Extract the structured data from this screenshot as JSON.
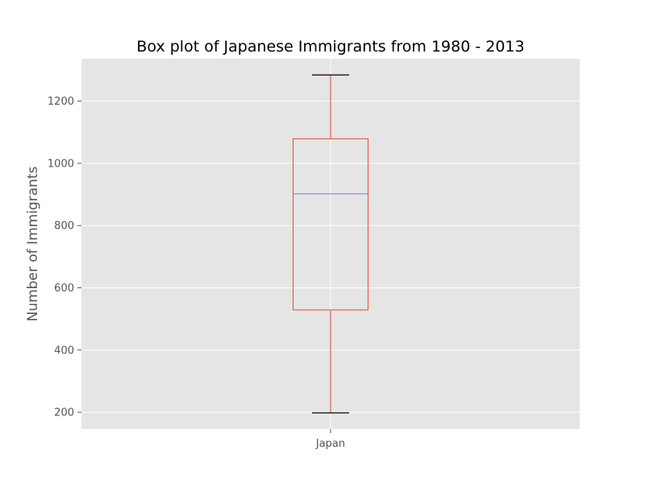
{
  "chart_data": {
    "type": "box",
    "title": "Box plot of Japanese Immigrants from 1980 - 2013",
    "xlabel": "",
    "ylabel": "Number of Immigrants",
    "categories": [
      "Japan"
    ],
    "boxes": [
      {
        "category": "Japan",
        "whisker_low": 198,
        "q1": 529,
        "median": 902,
        "q3": 1079,
        "whisker_high": 1284
      }
    ],
    "ylim": [
      146,
      1336
    ],
    "yticks": [
      200,
      400,
      600,
      800,
      1000,
      1200
    ],
    "grid": true,
    "colors": {
      "plot_background": "#e5e5e5",
      "grid": "#ffffff",
      "box": "#e24a33",
      "median": "#988ed5",
      "caps": "#000000",
      "tick_text": "#555555",
      "title_text": "#000000"
    }
  }
}
